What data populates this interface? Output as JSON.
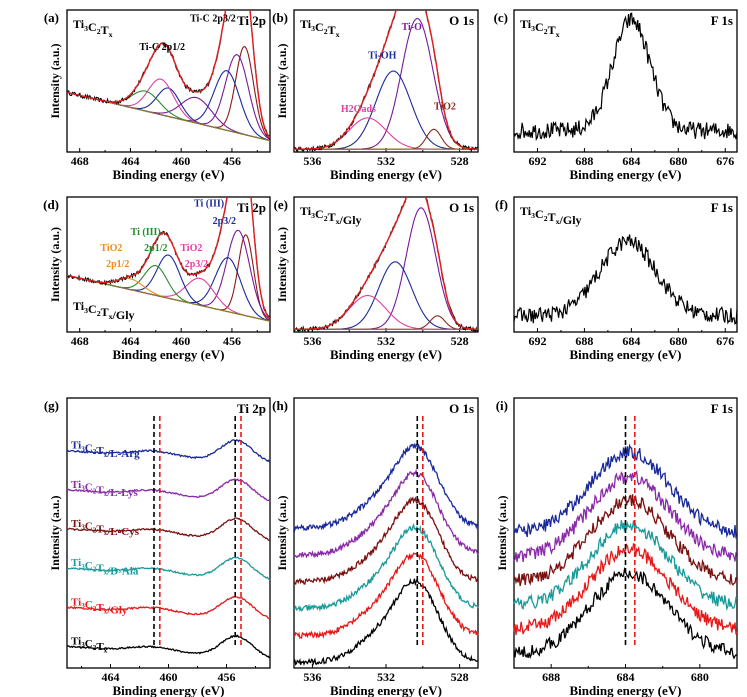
{
  "figure": {
    "colors": {
      "envelope": "#e02020",
      "raw": "#000000",
      "background": "#8a7a2a",
      "comp_blue": "#1a2a9a",
      "comp_purple": "#7a1a9a",
      "comp_green": "#2a8a2a",
      "comp_pink": "#e040a0",
      "comp_orange": "#f08a20",
      "comp_darkred": "#8a1a1a",
      "comp_brown": "#8a2a1a",
      "stack_arg": "#1a2a9a",
      "stack_lys": "#8a2aa8",
      "stack_cys": "#7a1010",
      "stack_ala": "#1a9a9a",
      "stack_gly": "#e81818",
      "stack_base": "#000000",
      "dash_black": "#000000",
      "dash_red": "#e81818"
    }
  },
  "chart_data": [
    {
      "id": "a",
      "panel_label": "(a)",
      "type": "line",
      "title": "Ti 2p",
      "sample": "Ti3C2Tx",
      "xlabel": "Binding energy (eV)",
      "ylabel": "Intensity (a.u.)",
      "xlim": [
        469,
        453
      ],
      "xticks": [
        468,
        464,
        460,
        456
      ],
      "annotations": [
        "Ti-C 2p1/2",
        "Ti-C 2p3/2"
      ],
      "components": [
        {
          "name": "Ti-C 2p3/2",
          "center": 455.0,
          "height": 0.62,
          "width": 0.7,
          "color": "comp_darkred"
        },
        {
          "name": "comp2",
          "center": 455.6,
          "height": 0.55,
          "width": 0.9,
          "color": "comp_purple"
        },
        {
          "name": "comp3",
          "center": 456.4,
          "height": 0.42,
          "width": 1.0,
          "color": "comp_blue"
        },
        {
          "name": "comp4",
          "center": 458.8,
          "height": 0.18,
          "width": 1.2,
          "color": "comp_purple"
        },
        {
          "name": "comp5",
          "center": 461.0,
          "height": 0.2,
          "width": 0.9,
          "color": "comp_blue"
        },
        {
          "name": "Ti-C 2p1/2",
          "center": 461.6,
          "height": 0.25,
          "width": 1.0,
          "color": "comp_pink"
        },
        {
          "name": "comp7",
          "center": 462.8,
          "height": 0.14,
          "width": 1.1,
          "color": "comp_green"
        }
      ]
    },
    {
      "id": "b",
      "panel_label": "(b)",
      "type": "line",
      "title": "O 1s",
      "sample": "Ti3C2Tx",
      "xlabel": "Binding energy (eV)",
      "ylabel": "Intensity (a.u.)",
      "xlim": [
        537,
        527
      ],
      "xticks": [
        536,
        532,
        528
      ],
      "annotations": [
        "Ti-O",
        "Ti-OH",
        "H2Oads",
        "TiO2"
      ],
      "components": [
        {
          "name": "Ti-O",
          "center": 530.3,
          "height": 0.92,
          "width": 0.85,
          "color": "comp_purple"
        },
        {
          "name": "Ti-OH",
          "center": 531.6,
          "height": 0.55,
          "width": 0.95,
          "color": "comp_blue"
        },
        {
          "name": "H2Oads",
          "center": 533.0,
          "height": 0.22,
          "width": 1.0,
          "color": "comp_pink"
        },
        {
          "name": "TiO2",
          "center": 529.4,
          "height": 0.14,
          "width": 0.4,
          "color": "comp_brown"
        }
      ]
    },
    {
      "id": "c",
      "panel_label": "(c)",
      "type": "line",
      "title": "F 1s",
      "sample": "Ti3C2Tx",
      "xlabel": "Binding energy (eV)",
      "ylabel": "",
      "xlim": [
        694,
        675
      ],
      "xticks": [
        692,
        688,
        684,
        680,
        676
      ],
      "peak_center": 684.0,
      "peak_height": 0.78,
      "peak_width": 1.6,
      "noise": 0.06,
      "baseline": 0.15
    },
    {
      "id": "d",
      "panel_label": "(d)",
      "type": "line",
      "title": "Ti 2p",
      "sample": "Ti3C2Tx/Gly",
      "xlabel": "Binding energy (eV)",
      "ylabel": "Intensity (a.u.)",
      "xlim": [
        469,
        453
      ],
      "xticks": [
        468,
        464,
        460,
        456
      ],
      "annotations": [
        "TiO2 2p1/2",
        "Ti (III) 2p1/2",
        "TiO2 2p3/2",
        "Ti (III) 2p3/2"
      ],
      "components": [
        {
          "name": "c1",
          "center": 454.9,
          "height": 0.6,
          "width": 0.6,
          "color": "comp_darkred"
        },
        {
          "name": "c2",
          "center": 455.5,
          "height": 0.62,
          "width": 0.9,
          "color": "comp_purple"
        },
        {
          "name": "Ti (III) 2p3/2",
          "center": 456.3,
          "height": 0.4,
          "width": 1.0,
          "color": "comp_blue"
        },
        {
          "name": "TiO2 2p3/2",
          "center": 458.5,
          "height": 0.2,
          "width": 1.1,
          "color": "comp_pink"
        },
        {
          "name": "c5",
          "center": 461.0,
          "height": 0.32,
          "width": 0.9,
          "color": "comp_blue"
        },
        {
          "name": "Ti (III) 2p1/2",
          "center": 462.0,
          "height": 0.22,
          "width": 0.9,
          "color": "comp_green"
        },
        {
          "name": "TiO2 2p1/2",
          "center": 464.0,
          "height": 0.08,
          "width": 1.0,
          "color": "comp_orange"
        }
      ]
    },
    {
      "id": "e",
      "panel_label": "(e)",
      "type": "line",
      "title": "O 1s",
      "sample": "Ti3C2Tx/Gly",
      "xlabel": "Binding energy (eV)",
      "ylabel": "Intensity (a.u.)",
      "xlim": [
        537,
        527
      ],
      "xticks": [
        536,
        532,
        528
      ],
      "components": [
        {
          "name": "c1",
          "center": 530.1,
          "height": 0.9,
          "width": 0.8,
          "color": "comp_purple"
        },
        {
          "name": "c2",
          "center": 531.5,
          "height": 0.5,
          "width": 0.9,
          "color": "comp_blue"
        },
        {
          "name": "c3",
          "center": 533.0,
          "height": 0.25,
          "width": 1.0,
          "color": "comp_pink"
        },
        {
          "name": "c4",
          "center": 529.2,
          "height": 0.1,
          "width": 0.4,
          "color": "comp_brown"
        }
      ]
    },
    {
      "id": "f",
      "panel_label": "(f)",
      "type": "line",
      "title": "F 1s",
      "sample": "Ti3C2Tx/Gly",
      "xlabel": "Binding energy (eV)",
      "ylabel": "",
      "xlim": [
        694,
        675
      ],
      "xticks": [
        692,
        688,
        684,
        680,
        676
      ],
      "peak_center": 684.3,
      "peak_height": 0.55,
      "peak_width": 2.4,
      "noise": 0.06,
      "baseline": 0.12
    },
    {
      "id": "g",
      "panel_label": "(g)",
      "type": "line",
      "title": "Ti 2p",
      "xlabel": "Binding energy (eV)",
      "ylabel": "Intensity (a.u.)",
      "xlim": [
        467,
        453
      ],
      "xticks": [
        464,
        460,
        456
      ],
      "dashed_lines": [
        {
          "x": 461.0,
          "color": "dash_black"
        },
        {
          "x": 460.6,
          "color": "dash_red"
        },
        {
          "x": 455.4,
          "color": "dash_black"
        },
        {
          "x": 455.0,
          "color": "dash_red"
        }
      ],
      "series": [
        {
          "name": "Ti3C2Tx/L-Arg",
          "color": "stack_arg"
        },
        {
          "name": "Ti3C2Tx/L-Lys",
          "color": "stack_lys"
        },
        {
          "name": "Ti3C2Tx/L-Cys",
          "color": "stack_cys"
        },
        {
          "name": "Ti3C2Tx/D-Ala",
          "color": "stack_ala"
        },
        {
          "name": "Ti3C2Tx/Gly",
          "color": "stack_gly"
        },
        {
          "name": "Ti3C2Tx",
          "color": "stack_base"
        }
      ]
    },
    {
      "id": "h",
      "panel_label": "(h)",
      "type": "line",
      "title": "O 1s",
      "xlabel": "Binding energy (eV)",
      "ylabel": "Intensity (a.u.)",
      "xlim": [
        537,
        527
      ],
      "xticks": [
        536,
        532,
        528
      ],
      "dashed_lines": [
        {
          "x": 530.3,
          "color": "dash_black"
        },
        {
          "x": 530.0,
          "color": "dash_red"
        }
      ],
      "series": [
        {
          "name": "Ti3C2Tx/L-Arg",
          "color": "stack_arg"
        },
        {
          "name": "Ti3C2Tx/L-Lys",
          "color": "stack_lys"
        },
        {
          "name": "Ti3C2Tx/L-Cys",
          "color": "stack_cys"
        },
        {
          "name": "Ti3C2Tx/D-Ala",
          "color": "stack_ala"
        },
        {
          "name": "Ti3C2Tx/Gly",
          "color": "stack_gly"
        },
        {
          "name": "Ti3C2Tx",
          "color": "stack_base"
        }
      ]
    },
    {
      "id": "i",
      "panel_label": "(i)",
      "type": "line",
      "title": "F 1s",
      "xlabel": "Binding energy (eV)",
      "ylabel": "Intensity (a.u.)",
      "xlim": [
        690,
        678
      ],
      "xticks": [
        688,
        684,
        680
      ],
      "dashed_lines": [
        {
          "x": 684.0,
          "color": "dash_black"
        },
        {
          "x": 683.5,
          "color": "dash_red"
        }
      ],
      "series": [
        {
          "name": "Ti3C2Tx/L-Arg",
          "color": "stack_arg"
        },
        {
          "name": "Ti3C2Tx/L-Lys",
          "color": "stack_lys"
        },
        {
          "name": "Ti3C2Tx/L-Cys",
          "color": "stack_cys"
        },
        {
          "name": "Ti3C2Tx/D-Ala",
          "color": "stack_ala"
        },
        {
          "name": "Ti3C2Tx/Gly",
          "color": "stack_gly"
        },
        {
          "name": "Ti3C2Tx",
          "color": "stack_base"
        }
      ]
    }
  ]
}
